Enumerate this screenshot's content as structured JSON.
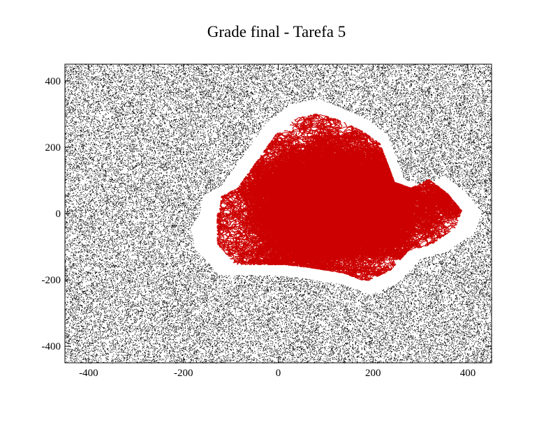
{
  "chart_data": {
    "type": "scatter",
    "title": "Grade final - Tarefa 5",
    "xlabel": "",
    "ylabel": "",
    "xlim": [
      -450,
      450
    ],
    "ylim": [
      -450,
      450
    ],
    "grid": false,
    "x_ticks": [
      -400,
      -200,
      0,
      200,
      400
    ],
    "y_ticks": [
      -400,
      -200,
      0,
      200,
      400
    ],
    "x_tick_labels": [
      "-400",
      "-200",
      "0",
      "200",
      "400"
    ],
    "y_tick_labels": [
      "-400",
      "-200",
      "0",
      "200",
      "400"
    ],
    "series": [
      {
        "role": "random walkers",
        "color": "#000000",
        "marker": "dot",
        "count": 60000,
        "distribution": "uniform over the grid, excluding the empty zone around the aggregate"
      },
      {
        "role": "aggregate",
        "color": "#cc0000",
        "marker": "dot",
        "structure": "branched diffusion-limited aggregate",
        "extent_x": [
          -130,
          420
        ],
        "extent_y": [
          -225,
          340
        ]
      }
    ],
    "empty_zone_outline": [
      [
        -165,
        5
      ],
      [
        -160,
        55
      ],
      [
        -120,
        85
      ],
      [
        -65,
        195
      ],
      [
        -25,
        275
      ],
      [
        25,
        330
      ],
      [
        75,
        345
      ],
      [
        125,
        325
      ],
      [
        185,
        285
      ],
      [
        230,
        240
      ],
      [
        265,
        105
      ],
      [
        305,
        85
      ],
      [
        350,
        115
      ],
      [
        395,
        65
      ],
      [
        430,
        5
      ],
      [
        415,
        -55
      ],
      [
        355,
        -115
      ],
      [
        300,
        -135
      ],
      [
        255,
        -205
      ],
      [
        195,
        -245
      ],
      [
        140,
        -215
      ],
      [
        55,
        -195
      ],
      [
        -5,
        -185
      ],
      [
        -65,
        -185
      ],
      [
        -125,
        -185
      ],
      [
        -175,
        -105
      ],
      [
        -185,
        -45
      ]
    ]
  }
}
